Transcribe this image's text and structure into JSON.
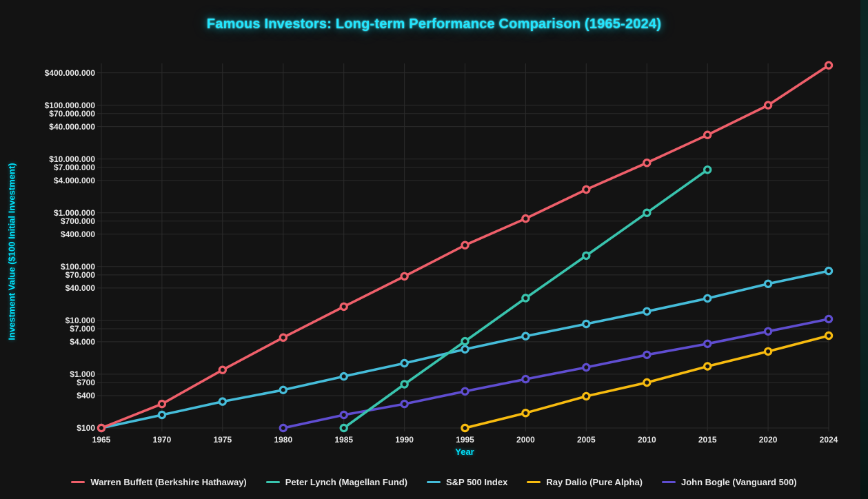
{
  "page": {
    "background": "#131313"
  },
  "title": "Famous Investors: Long-term Performance Comparison (1965-2024)",
  "chart_data": {
    "type": "line",
    "y_scale": "log",
    "title": "Famous Investors: Long-term Performance Comparison (1965-2024)",
    "xlabel": "Year",
    "ylabel": "Investment Value ($100 Initial Investment)",
    "x_categories": [
      "1965",
      "1970",
      "1975",
      "1980",
      "1985",
      "1990",
      "1995",
      "2000",
      "2005",
      "2010",
      "2015",
      "2020",
      "2024"
    ],
    "ylim": [
      100,
      400000000
    ],
    "yticks": [
      400000000,
      100000000,
      70000000,
      40000000,
      10000000,
      7000000,
      4000000,
      1000000,
      700000,
      400000,
      100000,
      70000,
      40000,
      10000,
      7000,
      4000,
      1000,
      700,
      400,
      100
    ],
    "grid": true,
    "legend_position": "bottom",
    "marker_style": "open-circle",
    "series": [
      {
        "id": "buffett",
        "name": "Warren Buffett (Berkshire Hathaway)",
        "color": "#ef5f6a",
        "values": [
          100,
          280,
          1200,
          4800,
          18000,
          66000,
          250000,
          780000,
          2700000,
          8500000,
          28000000,
          100000000,
          550000000
        ]
      },
      {
        "id": "lynch",
        "name": "Peter Lynch (Magellan Fund)",
        "color": "#39c4ae",
        "values": [
          null,
          null,
          null,
          null,
          100,
          650,
          4100,
          26000,
          160000,
          1000000,
          6300000,
          null,
          null
        ]
      },
      {
        "id": "sp500",
        "name": "S&P 500 Index",
        "color": "#45bcd9",
        "values": [
          100,
          175,
          310,
          510,
          910,
          1600,
          2900,
          5100,
          8600,
          14700,
          25700,
          47800,
          83000
        ]
      },
      {
        "id": "dalio",
        "name": "Ray Dalio (Pure Alpha)",
        "color": "#f7bb0f",
        "values": [
          null,
          null,
          null,
          null,
          null,
          null,
          100,
          190,
          390,
          700,
          1400,
          2650,
          5200
        ]
      },
      {
        "id": "bogle",
        "name": "John Bogle (Vanguard 500)",
        "color": "#5f4dd0",
        "values": [
          null,
          null,
          null,
          100,
          175,
          280,
          480,
          810,
          1340,
          2290,
          3670,
          6250,
          10600
        ]
      }
    ],
    "colors": {
      "title": "#21e6ff",
      "axis_label": "#00e5ff",
      "tick": "#e8e8e8",
      "grid": "#2b2b2b",
      "legend_text": "#e9e9e9",
      "marker_fill": "#131313"
    }
  }
}
